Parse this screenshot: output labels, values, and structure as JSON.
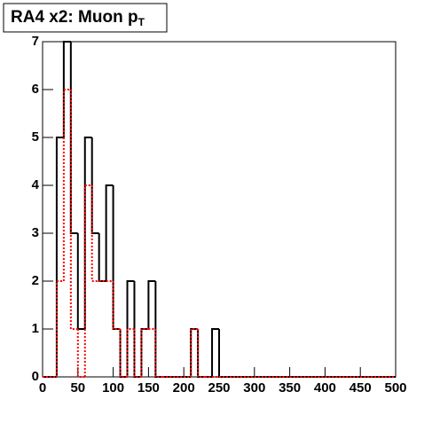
{
  "chart_data": {
    "type": "histogram",
    "title": "RA4 x2: Muon p",
    "title_subscript": "T",
    "bins": [
      0,
      10,
      20,
      30,
      40,
      50,
      60,
      70,
      80,
      90,
      100,
      110,
      120,
      130,
      140,
      150,
      160,
      170,
      180,
      190,
      200,
      210,
      220,
      230,
      240,
      250,
      260,
      270,
      280,
      290,
      300,
      310,
      320,
      330,
      340,
      350,
      360,
      370,
      380,
      390,
      400,
      410,
      420,
      430,
      440,
      450,
      460,
      470,
      480,
      490,
      500
    ],
    "series": [
      {
        "color": "#000000",
        "dash": false,
        "values": [
          0,
          0,
          5,
          7,
          3,
          1,
          5,
          3,
          2,
          4,
          1,
          0,
          2,
          0,
          1,
          2,
          0,
          0,
          0,
          0,
          0,
          1,
          0,
          0,
          1,
          0,
          0,
          0,
          0,
          0,
          0,
          0,
          0,
          0,
          0,
          0,
          0,
          0,
          0,
          0,
          0,
          0,
          0,
          0,
          0,
          0,
          0,
          0,
          0,
          0
        ]
      },
      {
        "color": "#ff0000",
        "dash": true,
        "values": [
          0,
          0,
          2,
          6,
          1,
          0,
          4,
          2,
          2,
          2,
          1,
          0,
          1,
          0,
          1,
          1,
          0,
          0,
          0,
          0,
          0,
          1,
          0,
          0,
          0,
          0,
          0,
          0,
          0,
          0,
          0,
          0,
          0,
          0,
          0,
          0,
          0,
          0,
          0,
          0,
          0,
          0,
          0,
          0,
          0,
          0,
          0,
          0,
          0,
          0
        ]
      }
    ],
    "xlim": [
      0,
      500
    ],
    "xticks": [
      0,
      50,
      100,
      150,
      200,
      250,
      300,
      350,
      400,
      450,
      500
    ],
    "ylim": [
      0,
      7
    ],
    "yticks": [
      0,
      1,
      2,
      3,
      4,
      5,
      6,
      7
    ]
  }
}
